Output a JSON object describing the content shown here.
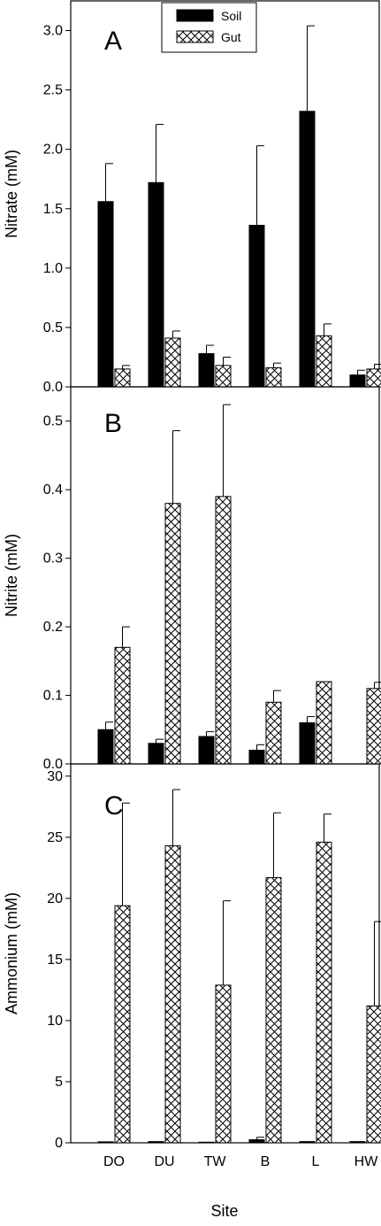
{
  "chart_data": [
    {
      "type": "bar",
      "panel": "A",
      "ylabel": "Nitrate (mM)",
      "ylim": [
        0,
        3.25
      ],
      "yticks": [
        "0.0",
        "0.5",
        "1.0",
        "1.5",
        "2.0",
        "2.5",
        "3.0"
      ],
      "categories": [
        "DO",
        "DU",
        "TW",
        "B",
        "L",
        "HW"
      ],
      "legend": {
        "placement": "top-center",
        "entries": [
          "Soil",
          "Gut"
        ]
      },
      "series": [
        {
          "name": "Soil",
          "values": [
            1.56,
            1.72,
            0.28,
            1.36,
            2.32,
            0.1
          ],
          "errors": [
            0.32,
            0.49,
            0.07,
            0.67,
            0.72,
            0.04
          ]
        },
        {
          "name": "Gut",
          "values": [
            0.15,
            0.41,
            0.18,
            0.16,
            0.43,
            0.15
          ],
          "errors": [
            0.03,
            0.06,
            0.07,
            0.04,
            0.1,
            0.04
          ]
        }
      ]
    },
    {
      "type": "bar",
      "panel": "B",
      "ylabel": "Nitrite (mM)",
      "ylim": [
        0,
        0.55
      ],
      "yticks": [
        "0.0",
        "0.1",
        "0.2",
        "0.3",
        "0.4",
        "0.5"
      ],
      "categories": [
        "DO",
        "DU",
        "TW",
        "B",
        "L",
        "HW"
      ],
      "series": [
        {
          "name": "Soil",
          "values": [
            0.05,
            0.03,
            0.04,
            0.02,
            0.06,
            0
          ],
          "errors": [
            0.011,
            0.006,
            0.007,
            0.008,
            0.009,
            0
          ]
        },
        {
          "name": "Gut",
          "values": [
            0.17,
            0.38,
            0.39,
            0.09,
            0.12,
            0.11
          ],
          "errors": [
            0.03,
            0.106,
            0.134,
            0.017,
            0,
            0.009
          ]
        }
      ]
    },
    {
      "type": "bar",
      "panel": "C",
      "ylabel": "Ammonium (mM)",
      "xlabel": "Site",
      "ylim": [
        0,
        31
      ],
      "yticks": [
        "0",
        "5",
        "10",
        "15",
        "20",
        "25",
        "30"
      ],
      "categories": [
        "DO",
        "DU",
        "TW",
        "B",
        "L",
        "HW"
      ],
      "series": [
        {
          "name": "Soil",
          "values": [
            0.08,
            0.1,
            0.05,
            0.25,
            0.1,
            0.1
          ],
          "errors": [
            0,
            0,
            0,
            0.2,
            0,
            0
          ]
        },
        {
          "name": "Gut",
          "values": [
            19.4,
            24.3,
            12.9,
            21.7,
            24.6,
            11.2
          ],
          "errors": [
            8.4,
            4.6,
            6.9,
            5.3,
            2.3,
            6.9
          ]
        }
      ]
    }
  ]
}
